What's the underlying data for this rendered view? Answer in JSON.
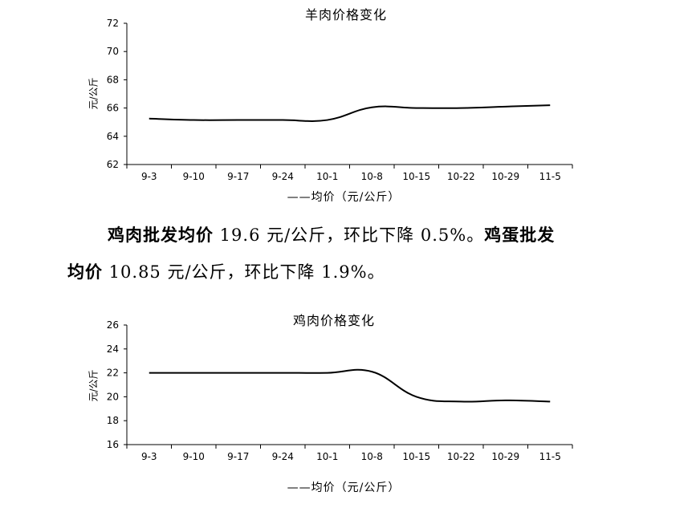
{
  "chart_data": [
    {
      "type": "line",
      "title": "羊肉价格变化",
      "ylabel": "元/公斤",
      "legend": "——均价（元/公斤）",
      "categories": [
        "9-3",
        "9-10",
        "9-17",
        "9-24",
        "10-1",
        "10-8",
        "10-15",
        "10-22",
        "10-29",
        "11-5"
      ],
      "yticks": [
        "62",
        "64",
        "66",
        "68",
        "70",
        "72"
      ],
      "ylim": [
        62,
        72
      ],
      "series": [
        {
          "values": [
            65.25,
            65.15,
            65.15,
            65.15,
            65.15,
            66.05,
            66.0,
            66.0,
            66.1,
            66.2
          ]
        }
      ],
      "grid": false,
      "legend_position": "bottom"
    },
    {
      "type": "line",
      "title": "鸡肉价格变化",
      "ylabel": "元/公斤",
      "legend": "——均价（元/公斤）",
      "categories": [
        "9-3",
        "9-10",
        "9-17",
        "9-24",
        "10-1",
        "10-8",
        "10-15",
        "10-22",
        "10-29",
        "11-5"
      ],
      "yticks": [
        "16",
        "18",
        "20",
        "22",
        "24",
        "26"
      ],
      "ylim": [
        16,
        26
      ],
      "series": [
        {
          "values": [
            22.0,
            22.0,
            22.0,
            22.0,
            22.0,
            22.1,
            20.0,
            19.6,
            19.7,
            19.6
          ]
        }
      ],
      "grid": false,
      "legend_position": "bottom"
    }
  ],
  "paragraph": {
    "bold1": "鸡肉批发均价",
    "text1": " 19.6 元/公斤，环比下降 0.5%。",
    "bold2a": "鸡蛋批发",
    "bold2b": "均价",
    "text2": " 10.85 元/公斤，环比下降 1.9%。"
  }
}
